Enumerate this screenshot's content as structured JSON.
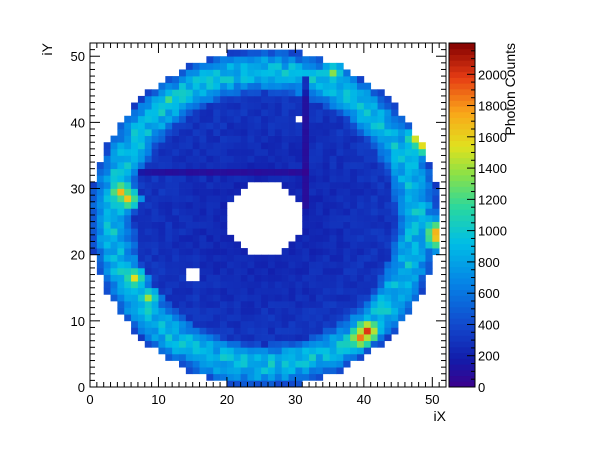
{
  "chart_data": {
    "type": "heatmap",
    "title": "",
    "xlabel": "iX",
    "ylabel": "iY",
    "xlim": [
      0,
      52
    ],
    "ylim": [
      0,
      52
    ],
    "x_ticks": [
      0,
      10,
      20,
      30,
      40,
      50
    ],
    "y_ticks": [
      0,
      10,
      20,
      30,
      40,
      50
    ],
    "colorbar": {
      "label": "Photon Counts",
      "range": [
        0,
        2200
      ],
      "ticks": [
        0,
        200,
        400,
        600,
        800,
        1000,
        1200,
        1400,
        1600,
        1800,
        2000
      ],
      "colormap": "rainbow (dark blue to dark red)"
    },
    "grid": false,
    "structure": {
      "description": "ring-shaped detector map with hollow center",
      "center_ix": 25.5,
      "center_iy": 25.5,
      "inner_hole_radius_cells": 5.5,
      "outer_radius_cells": 25.5,
      "inner_region_counts_approx": 220,
      "outer_ring_counts_approx": 900,
      "hotspots": [
        {
          "ix": 4,
          "iy": 29,
          "counts": 1700
        },
        {
          "ix": 5,
          "iy": 28,
          "counts": 1650
        },
        {
          "ix": 50,
          "iy": 23,
          "counts": 1700
        },
        {
          "ix": 50,
          "iy": 22,
          "counts": 1650
        },
        {
          "ix": 48,
          "iy": 36,
          "counts": 1550
        },
        {
          "ix": 47,
          "iy": 37,
          "counts": 1500
        },
        {
          "ix": 40,
          "iy": 8,
          "counts": 2000
        },
        {
          "ix": 39,
          "iy": 7,
          "counts": 1850
        },
        {
          "ix": 6,
          "iy": 16,
          "counts": 1550
        },
        {
          "ix": 8,
          "iy": 13,
          "counts": 1400
        },
        {
          "ix": 35,
          "iy": 47,
          "counts": 1350
        },
        {
          "ix": 11,
          "iy": 43,
          "counts": 1200
        }
      ],
      "empty_cells": [
        {
          "ix": 30,
          "iy": 40
        },
        {
          "ix": 14,
          "iy": 17
        },
        {
          "ix": 14,
          "iy": 16
        },
        {
          "ix": 15,
          "iy": 17
        },
        {
          "ix": 15,
          "iy": 16
        }
      ],
      "low_lines": [
        {
          "orientation": "horizontal",
          "iy": 32,
          "ix_from": 7,
          "ix_to": 31
        },
        {
          "orientation": "vertical",
          "ix": 31,
          "iy_from": 27,
          "iy_to": 46
        }
      ]
    }
  }
}
